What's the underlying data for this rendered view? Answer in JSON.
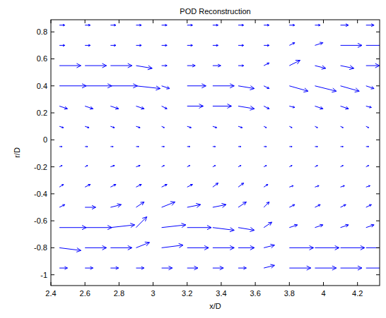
{
  "chart_data": {
    "type": "quiver",
    "title": "POD Reconstruction",
    "x_label": "x/D",
    "y_label": "r/D",
    "color": "#0000ff",
    "xlim": [
      2.4,
      4.33
    ],
    "ylim": [
      -1.08,
      0.89
    ],
    "xticks": [
      2.4,
      2.6,
      2.8,
      3,
      3.2,
      3.4,
      3.6,
      3.8,
      4,
      4.2
    ],
    "yticks": [
      -1,
      -0.8,
      -0.6,
      -0.4,
      -0.2,
      0,
      0.2,
      0.4,
      0.6,
      0.8
    ],
    "x": [
      2.45,
      2.6,
      2.75,
      2.9,
      3.05,
      3.2,
      3.35,
      3.5,
      3.65,
      3.8,
      3.95,
      4.1,
      4.25
    ],
    "y": [
      -0.95,
      -0.8,
      -0.65,
      -0.5,
      -0.35,
      -0.2,
      -0.05,
      0.1,
      0.25,
      0.4,
      0.55,
      0.7,
      0.85
    ],
    "u": [
      [
        0.3,
        0.3,
        0.3,
        0.3,
        0.4,
        0.4,
        0.4,
        0.3,
        0.4,
        0.8,
        0.8,
        0.8,
        0.7
      ],
      [
        0.8,
        0.8,
        0.8,
        0.5,
        0.8,
        0.8,
        0.8,
        0.6,
        0.4,
        0.9,
        0.9,
        0.9,
        0.9
      ],
      [
        1.0,
        1.0,
        0.9,
        0.4,
        0.9,
        0.9,
        0.8,
        0.6,
        0.3,
        0.3,
        0.3,
        0.3,
        0.3
      ],
      [
        0.2,
        0.4,
        0.4,
        0.3,
        0.5,
        0.5,
        0.5,
        0.3,
        0.2,
        0.2,
        0.2,
        0.2,
        0.2
      ],
      [
        0.15,
        0.2,
        0.2,
        0.2,
        0.2,
        0.2,
        0.2,
        0.2,
        0.15,
        0.15,
        0.15,
        0.15,
        0.15
      ],
      [
        0.1,
        0.1,
        0.15,
        0.15,
        0.1,
        0.1,
        0.1,
        0.1,
        0.1,
        0.1,
        0.1,
        0.1,
        0.1
      ],
      [
        0.1,
        0.1,
        0.1,
        0.1,
        0.1,
        0.1,
        0.1,
        0.1,
        0.1,
        0.1,
        0.1,
        0.1,
        0.1
      ],
      [
        0.15,
        0.15,
        0.15,
        0.15,
        0.1,
        0.15,
        0.15,
        0.15,
        0.1,
        0.1,
        0.1,
        0.1,
        0.1
      ],
      [
        0.3,
        0.3,
        0.3,
        0.3,
        0.2,
        0.6,
        0.7,
        0.6,
        0.2,
        0.2,
        0.3,
        0.3,
        0.2
      ],
      [
        1.0,
        1.0,
        1.0,
        0.9,
        0.3,
        0.7,
        0.8,
        0.6,
        0.2,
        0.7,
        0.8,
        0.7,
        0.3
      ],
      [
        0.8,
        0.8,
        0.8,
        0.6,
        0.2,
        0.3,
        0.3,
        0.2,
        0.2,
        0.4,
        0.4,
        0.5,
        0.5
      ],
      [
        0.2,
        0.2,
        0.2,
        0.2,
        0.2,
        0.2,
        0.2,
        0.2,
        0.2,
        0.2,
        0.3,
        0.8,
        0.8
      ],
      [
        0.2,
        0.2,
        0.2,
        0.2,
        0.2,
        0.2,
        0.2,
        0.2,
        0.2,
        0.2,
        0.2,
        0.3,
        0.3
      ]
    ],
    "v": [
      [
        0,
        0,
        0,
        0,
        0,
        0,
        0,
        0,
        0.1,
        0,
        0,
        0,
        0
      ],
      [
        -0.1,
        0,
        0,
        0.2,
        0.1,
        0,
        0,
        0,
        0.1,
        0,
        0,
        0,
        0
      ],
      [
        0,
        0,
        0.1,
        0.4,
        0.1,
        0,
        -0.1,
        -0.1,
        0.2,
        0.1,
        0.1,
        0.1,
        0.1
      ],
      [
        0.1,
        0,
        0.1,
        0.2,
        0.2,
        0.1,
        0.1,
        0.2,
        0.2,
        0.1,
        0.1,
        0.1,
        0.1
      ],
      [
        0.1,
        0.1,
        0.1,
        0.1,
        0.1,
        0.1,
        0.15,
        0.15,
        0.1,
        0.05,
        0.05,
        0.05,
        0.05
      ],
      [
        0.05,
        0.05,
        0.05,
        0.05,
        0.05,
        0.05,
        0.05,
        0.05,
        0.05,
        0.05,
        0.05,
        0.05,
        0.05
      ],
      [
        0,
        0,
        0,
        0,
        0,
        0,
        0,
        0,
        0,
        0,
        0,
        0,
        0
      ],
      [
        -0.05,
        -0.05,
        -0.05,
        -0.05,
        -0.05,
        -0.05,
        -0.05,
        -0.05,
        -0.05,
        -0.05,
        -0.05,
        -0.05,
        -0.05
      ],
      [
        -0.1,
        -0.1,
        -0.1,
        -0.1,
        -0.1,
        0,
        0,
        -0.1,
        -0.1,
        -0.05,
        -0.1,
        -0.1,
        -0.05
      ],
      [
        0,
        0,
        0,
        -0.1,
        -0.1,
        0,
        0,
        -0.1,
        -0.1,
        -0.2,
        -0.2,
        -0.2,
        -0.1
      ],
      [
        0,
        0,
        0,
        -0.1,
        0,
        0,
        0,
        0,
        0.1,
        0.2,
        -0.1,
        -0.1,
        0
      ],
      [
        0,
        0,
        0,
        0,
        0,
        0,
        0,
        0,
        0,
        0.1,
        0.1,
        0,
        0
      ],
      [
        0,
        0,
        0,
        0,
        0,
        0,
        0,
        0,
        0,
        0,
        0,
        0,
        0
      ]
    ]
  }
}
